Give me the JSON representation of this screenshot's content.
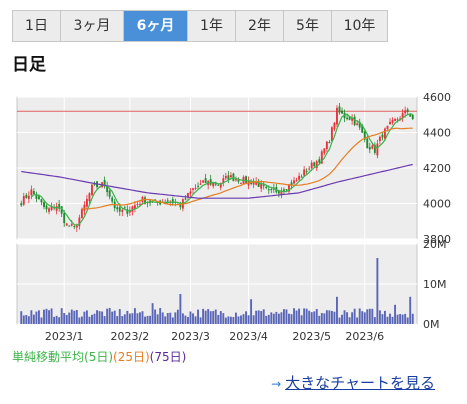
{
  "tabs": [
    {
      "label": "1日",
      "active": false
    },
    {
      "label": "3ヶ月",
      "active": false
    },
    {
      "label": "6ヶ月",
      "active": true
    },
    {
      "label": "1年",
      "active": false
    },
    {
      "label": "2年",
      "active": false
    },
    {
      "label": "5年",
      "active": false
    },
    {
      "label": "10年",
      "active": false
    }
  ],
  "subtitle": "日足",
  "legend": {
    "title": "単純移動平均",
    "ma5": "(5日)",
    "ma25": "(25日)",
    "ma75": "(75日)"
  },
  "link": {
    "label": "大きなチャートを見る",
    "arrow": "→"
  },
  "colors": {
    "up": "#e8323c",
    "down": "#1f8a2e",
    "ma5": "#3cb34a",
    "ma25": "#e67e22",
    "ma75": "#6a3bb0",
    "ref_line": "#e06060",
    "volume": "#5a66b6",
    "active_tab": "#4a90d9"
  },
  "chart_data": [
    {
      "type": "candlestick",
      "ylim": [
        3800,
        4600
      ],
      "yticks": [
        3800,
        4000,
        4200,
        4400,
        4600
      ],
      "xticks": [
        "2023/1",
        "2023/2",
        "2023/3",
        "2023/4",
        "2023/5",
        "2023/6"
      ],
      "reference_line": 4520,
      "grid": true,
      "close_path": [
        [
          0,
          4010
        ],
        [
          4,
          4070
        ],
        [
          10,
          3960
        ],
        [
          14,
          3990
        ],
        [
          18,
          3880
        ],
        [
          21,
          3860
        ],
        [
          24,
          3950
        ],
        [
          28,
          4090
        ],
        [
          33,
          4110
        ],
        [
          38,
          3950
        ],
        [
          42,
          3960
        ],
        [
          48,
          4020
        ],
        [
          53,
          4000
        ],
        [
          58,
          4020
        ],
        [
          63,
          3990
        ],
        [
          68,
          4080
        ],
        [
          73,
          4120
        ],
        [
          78,
          4110
        ],
        [
          82,
          4150
        ],
        [
          88,
          4130
        ],
        [
          93,
          4120
        ],
        [
          98,
          4060
        ],
        [
          103,
          4080
        ],
        [
          108,
          4120
        ],
        [
          113,
          4190
        ],
        [
          118,
          4250
        ],
        [
          122,
          4360
        ],
        [
          125,
          4520
        ],
        [
          128,
          4490
        ],
        [
          131,
          4480
        ],
        [
          134,
          4420
        ],
        [
          137,
          4330
        ],
        [
          140,
          4300
        ],
        [
          143,
          4390
        ],
        [
          146,
          4440
        ],
        [
          150,
          4490
        ],
        [
          153,
          4520
        ],
        [
          155,
          4480
        ]
      ],
      "ma75_path": [
        [
          0,
          4180
        ],
        [
          15,
          4150
        ],
        [
          30,
          4110
        ],
        [
          50,
          4060
        ],
        [
          70,
          4030
        ],
        [
          90,
          4030
        ],
        [
          110,
          4060
        ],
        [
          125,
          4120
        ],
        [
          140,
          4170
        ],
        [
          155,
          4220
        ]
      ]
    },
    {
      "type": "bar",
      "name": "volume",
      "ylim": [
        0,
        20
      ],
      "unit": "M",
      "yticks": [
        "0M",
        "10M",
        "20M"
      ],
      "spikes": [
        [
          141,
          16.5
        ],
        [
          63,
          7.5
        ],
        [
          52,
          5.2
        ],
        [
          91,
          6.2
        ],
        [
          125,
          6.8
        ],
        [
          148,
          4.8
        ],
        [
          154,
          6.8
        ]
      ]
    }
  ]
}
